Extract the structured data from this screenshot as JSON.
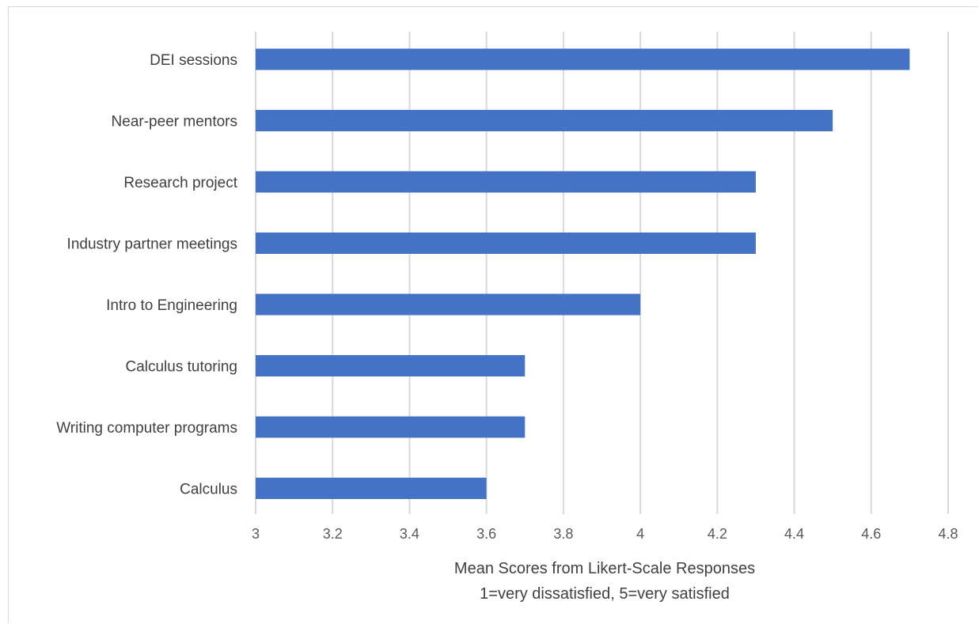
{
  "chart_data": {
    "type": "bar",
    "orientation": "horizontal",
    "categories": [
      "DEI sessions",
      "Near-peer mentors",
      "Research project ",
      "Industry partner meetings",
      "Intro to Engineering",
      "Calculus tutoring",
      "Writing computer programs",
      "Calculus "
    ],
    "values": [
      4.7,
      4.5,
      4.3,
      4.3,
      4.0,
      3.7,
      3.7,
      3.6
    ],
    "xlim": [
      3,
      4.8
    ],
    "x_ticks": [
      "3",
      "3.2",
      "3.4",
      "3.6",
      "3.8",
      "4",
      "4.2",
      "4.4",
      "4.6",
      "4.8"
    ],
    "xlabel_lines": [
      "Mean Scores from Likert-Scale Responses",
      "1=very dissatisfied, 5=very satisfied"
    ],
    "title": "",
    "ylabel": "",
    "grid": "vertical",
    "legend": "none",
    "bar_color": "#4472c4"
  }
}
